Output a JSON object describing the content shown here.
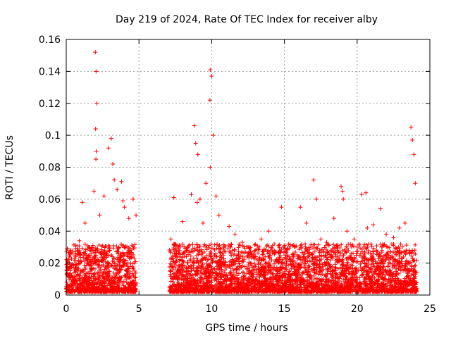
{
  "chart_data": {
    "type": "scatter",
    "title": "Day 219 of 2024, Rate Of TEC Index for receiver alby",
    "xlabel": "GPS time / hours",
    "ylabel": "ROTI / TECUs",
    "xlim": [
      0,
      25
    ],
    "ylim": [
      0,
      0.16
    ],
    "xticks": [
      0,
      5,
      10,
      15,
      20,
      25
    ],
    "xtick_labels": [
      "0",
      "5",
      "10",
      "15",
      "20",
      "25"
    ],
    "yticks": [
      0,
      0.02,
      0.04,
      0.06,
      0.08,
      0.1,
      0.12,
      0.14,
      0.16
    ],
    "ytick_labels": [
      "0",
      "0.02",
      "0.04",
      "0.06",
      "0.08",
      "0.1",
      "0.12",
      "0.14",
      "0.16"
    ],
    "grid": true,
    "marker": "+",
    "color": "#ff0000",
    "series": [
      {
        "name": "ROTI",
        "x": [
          0.1,
          0.3,
          0.6,
          0.9,
          1.1,
          1.3,
          1.6,
          1.9,
          2.0,
          2.05,
          2.1,
          2.3,
          2.6,
          2.9,
          3.1,
          3.3,
          3.5,
          3.8,
          4.0,
          4.3,
          4.6,
          4.8,
          7.2,
          7.4,
          7.7,
          8.0,
          8.3,
          8.6,
          8.8,
          8.9,
          9.0,
          9.2,
          9.4,
          9.6,
          9.9,
          10.0,
          10.1,
          10.3,
          10.5,
          10.8,
          11.2,
          11.6,
          12.1,
          12.5,
          13.0,
          13.4,
          13.9,
          14.3,
          14.8,
          15.2,
          15.7,
          16.1,
          16.5,
          17.0,
          17.2,
          17.5,
          17.9,
          18.4,
          18.9,
          19.0,
          19.3,
          19.8,
          20.3,
          20.7,
          21.1,
          21.6,
          22.0,
          22.5,
          22.9,
          23.3,
          23.7,
          23.8,
          23.9,
          24.0,
          0.2,
          0.8,
          1.5,
          2.4,
          3.0,
          3.7,
          4.4,
          7.5,
          8.1,
          9.1,
          9.7,
          10.6,
          11.4,
          12.8,
          13.7,
          15.0,
          16.3,
          17.7,
          18.6,
          20.0,
          21.3,
          22.3,
          23.5,
          2.02,
          2.04,
          9.88,
          9.9,
          2.07,
          3.2,
          3.9,
          9.05,
          20.6,
          19.05
        ],
        "y": [
          0.012,
          0.018,
          0.025,
          0.034,
          0.058,
          0.045,
          0.03,
          0.065,
          0.152,
          0.14,
          0.12,
          0.05,
          0.062,
          0.092,
          0.098,
          0.072,
          0.066,
          0.071,
          0.055,
          0.048,
          0.06,
          0.05,
          0.035,
          0.061,
          0.03,
          0.046,
          0.028,
          0.063,
          0.106,
          0.095,
          0.058,
          0.06,
          0.045,
          0.07,
          0.141,
          0.137,
          0.1,
          0.062,
          0.05,
          0.03,
          0.043,
          0.038,
          0.033,
          0.03,
          0.028,
          0.035,
          0.04,
          0.032,
          0.055,
          0.025,
          0.03,
          0.055,
          0.045,
          0.072,
          0.06,
          0.035,
          0.033,
          0.048,
          0.068,
          0.065,
          0.04,
          0.035,
          0.063,
          0.042,
          0.044,
          0.054,
          0.038,
          0.036,
          0.042,
          0.045,
          0.105,
          0.097,
          0.088,
          0.07,
          0.01,
          0.015,
          0.02,
          0.022,
          0.028,
          0.025,
          0.018,
          0.012,
          0.015,
          0.02,
          0.022,
          0.018,
          0.012,
          0.01,
          0.009,
          0.011,
          0.014,
          0.016,
          0.013,
          0.015,
          0.017,
          0.014,
          0.012,
          0.104,
          0.085,
          0.122,
          0.08,
          0.09,
          0.082,
          0.059,
          0.088,
          0.064,
          0.06
        ]
      }
    ],
    "band_note_left_block": [
      0,
      4.8
    ],
    "band_note_right_block": [
      7.1,
      24.1
    ]
  }
}
